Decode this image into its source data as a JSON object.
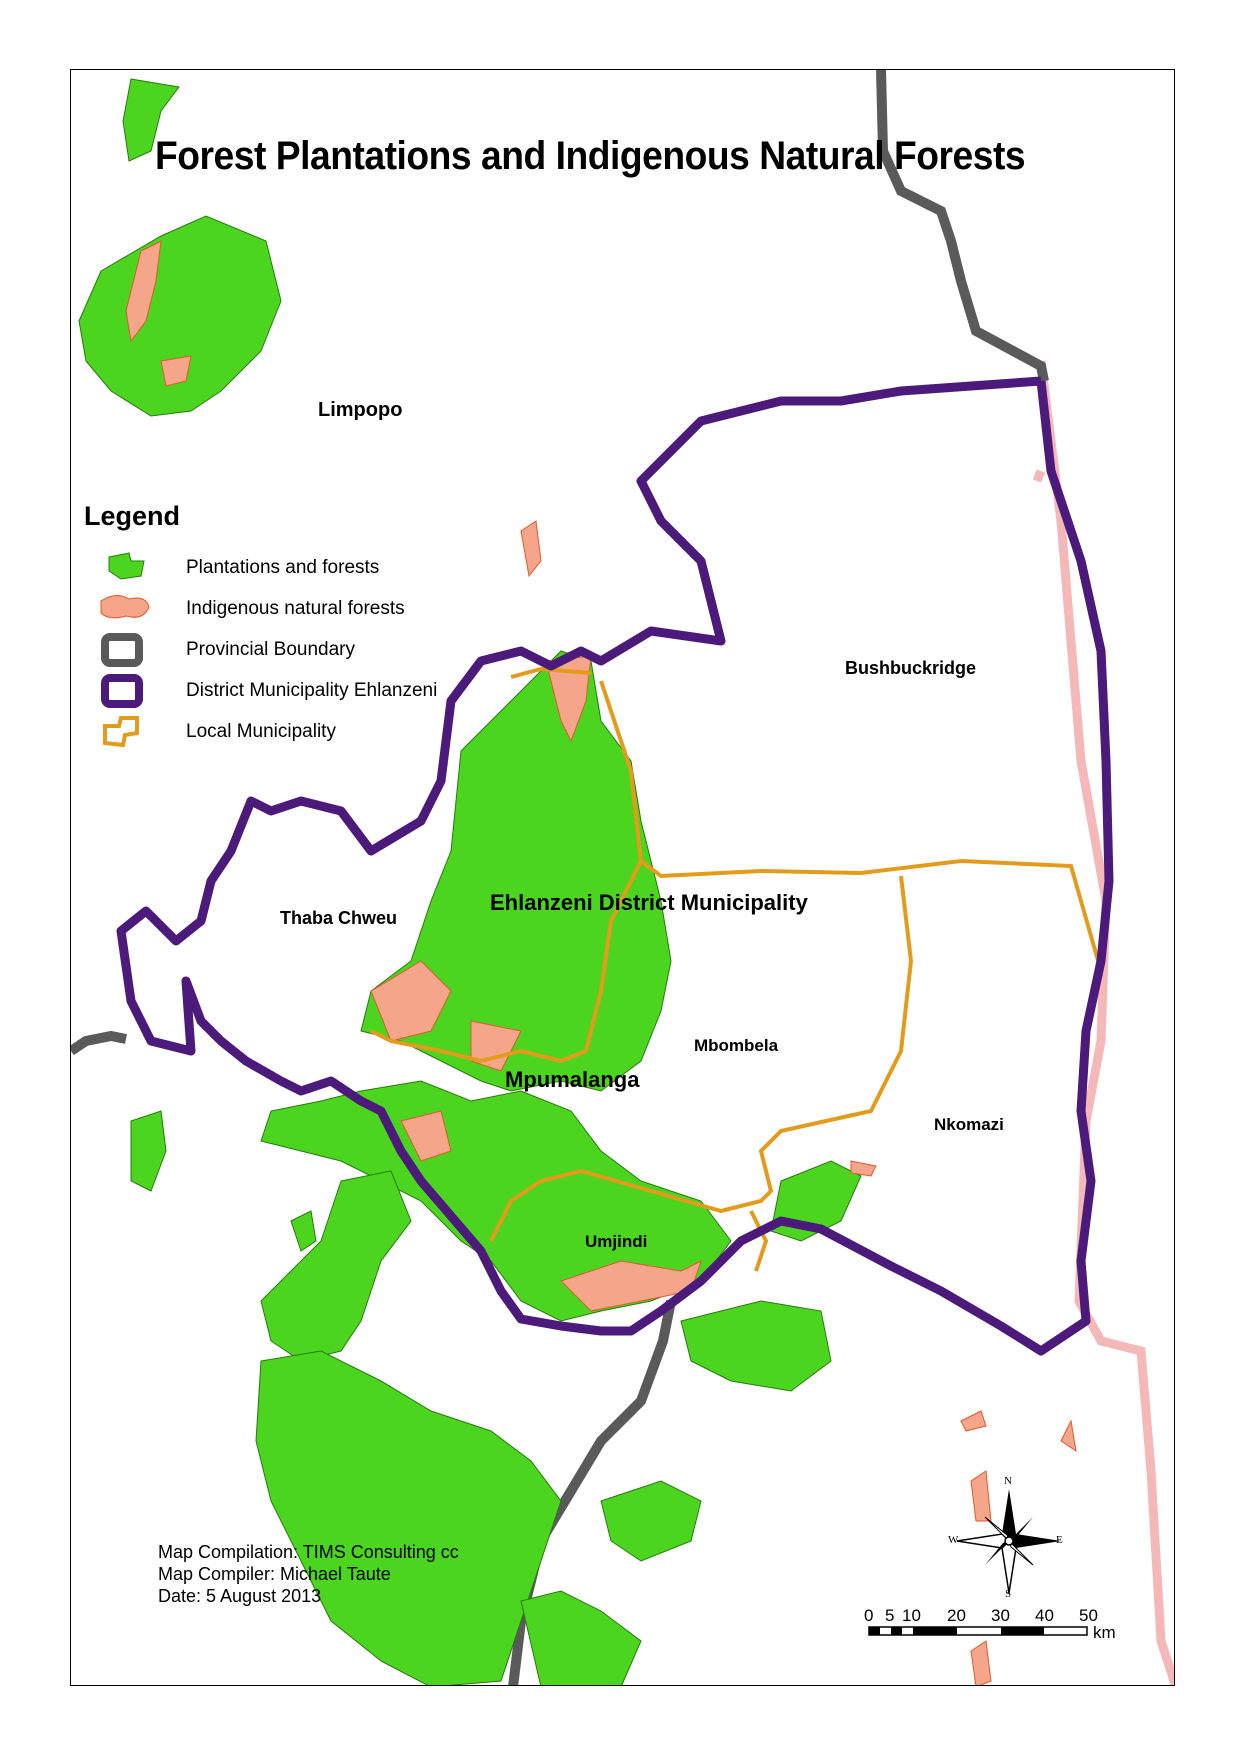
{
  "map": {
    "title": "Forest Plantations and Indigenous Natural Forests",
    "places": {
      "limpopo": "Limpopo",
      "bushbuckridge": "Bushbuckridge",
      "thaba_chweu": "Thaba Chweu",
      "ehlanzeni": "Ehlanzeni District Municipality",
      "mbombela": "Mbombela",
      "mpumalanga": "Mpumalanga",
      "nkomazi": "Nkomazi",
      "umjindi": "Umjindi"
    },
    "legend": {
      "title": "Legend",
      "items": [
        {
          "label": "Plantations and forests",
          "color": "#4bd51e",
          "symbol": "plantation-swatch"
        },
        {
          "label": "Indigenous natural forests",
          "color": "#f4a58a",
          "symbol": "indigenous-swatch"
        },
        {
          "label": "Provincial Boundary",
          "color": "#5a5a5a",
          "symbol": "provincial-boundary-swatch"
        },
        {
          "label": "District Municipality Ehlanzeni",
          "color": "#4b1a7a",
          "symbol": "district-boundary-swatch"
        },
        {
          "label": "Local Municipality",
          "color": "#e39b1c",
          "symbol": "local-municipality-swatch"
        }
      ]
    },
    "credits": {
      "compilation": "Map Compilation: TIMS Consulting cc",
      "compiler": "Map Compiler: Michael Taute",
      "date": "Date: 5 August 2013"
    },
    "compass": {
      "n": "N",
      "s": "S",
      "e": "E",
      "w": "W"
    },
    "scale_bar": {
      "ticks": [
        "0",
        "5",
        "10",
        "20",
        "30",
        "40",
        "50"
      ],
      "unit": "km"
    },
    "colors": {
      "plantation": "#4bd51e",
      "plantation_stroke": "#2a7a10",
      "indigenous": "#f4a58a",
      "indigenous_stroke": "#e05a2a",
      "provincial": "#5a5a5a",
      "international": "#f5b8b8",
      "district": "#4b1a7a",
      "local": "#e39b1c"
    }
  }
}
